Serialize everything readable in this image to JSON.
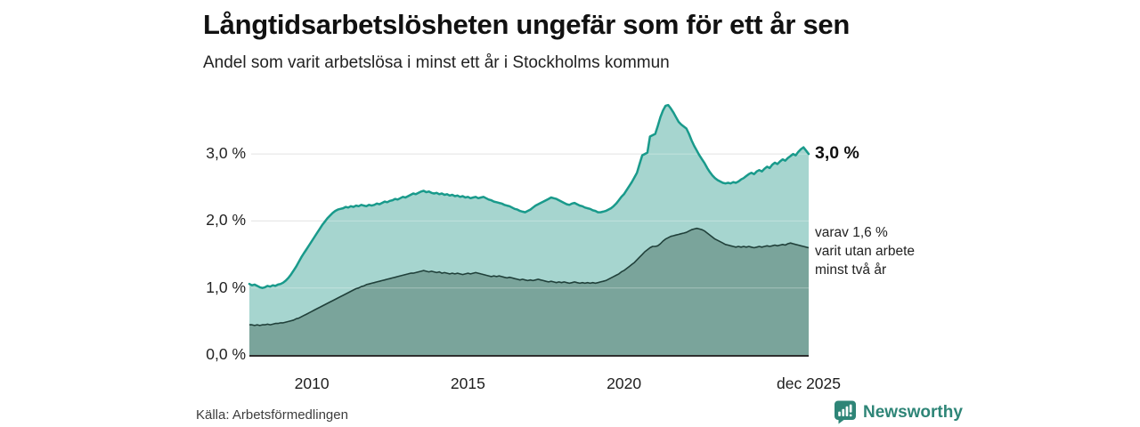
{
  "header": {
    "title": "Långtidsarbetslösheten ungefär som för ett år sen",
    "subtitle": "Andel som varit arbetslösa i minst ett år i Stockholms kommun"
  },
  "annotations": {
    "end_value_total": "3,0 %",
    "end_note_lines": [
      "varav 1,6 %",
      "varit utan arbete",
      "minst två år"
    ]
  },
  "source": {
    "label": "Källa: Arbetsförmedlingen"
  },
  "branding": {
    "name": "Newsworthy",
    "color": "#2e8577",
    "icon": "newsworthy-chart-bubble-icon"
  },
  "chart_data": {
    "type": "area",
    "x_unit": "month",
    "x_range": [
      "2008-01",
      "2025-12"
    ],
    "ylim": [
      0,
      3.9
    ],
    "grid": true,
    "grid_color": "#d9d9d9",
    "axis_color": "#2e2e2e",
    "legend_position": "right-annotations",
    "y_ticks": [
      {
        "value": 0,
        "label": "0,0 %"
      },
      {
        "value": 1,
        "label": "1,0 %"
      },
      {
        "value": 2,
        "label": "2,0 %"
      },
      {
        "value": 3,
        "label": "3,0 %"
      }
    ],
    "x_ticks": [
      {
        "index": 24,
        "label": "2010"
      },
      {
        "index": 84,
        "label": "2015"
      },
      {
        "index": 144,
        "label": "2020"
      },
      {
        "index": 215,
        "label": "dec 2025"
      }
    ],
    "series": [
      {
        "name": "Andel som varit arbetslösa i minst ett år",
        "end_value": 3.0,
        "line_color": "#199a8b",
        "fill_color": "#a6d5cf",
        "values": [
          1.06,
          1.04,
          1.05,
          1.03,
          1.01,
          1.0,
          1.01,
          1.03,
          1.02,
          1.04,
          1.03,
          1.05,
          1.06,
          1.08,
          1.11,
          1.15,
          1.2,
          1.26,
          1.32,
          1.39,
          1.46,
          1.52,
          1.58,
          1.64,
          1.7,
          1.76,
          1.82,
          1.88,
          1.94,
          1.99,
          2.04,
          2.08,
          2.12,
          2.15,
          2.17,
          2.18,
          2.19,
          2.21,
          2.2,
          2.22,
          2.21,
          2.23,
          2.22,
          2.24,
          2.23,
          2.22,
          2.24,
          2.23,
          2.24,
          2.26,
          2.25,
          2.27,
          2.29,
          2.28,
          2.3,
          2.31,
          2.33,
          2.32,
          2.34,
          2.36,
          2.35,
          2.37,
          2.39,
          2.41,
          2.4,
          2.42,
          2.44,
          2.45,
          2.43,
          2.44,
          2.42,
          2.41,
          2.42,
          2.4,
          2.41,
          2.39,
          2.4,
          2.38,
          2.39,
          2.37,
          2.38,
          2.36,
          2.37,
          2.35,
          2.36,
          2.34,
          2.35,
          2.36,
          2.34,
          2.35,
          2.36,
          2.34,
          2.32,
          2.31,
          2.29,
          2.28,
          2.27,
          2.26,
          2.24,
          2.23,
          2.22,
          2.2,
          2.18,
          2.17,
          2.15,
          2.14,
          2.13,
          2.15,
          2.17,
          2.2,
          2.23,
          2.25,
          2.27,
          2.29,
          2.31,
          2.33,
          2.35,
          2.34,
          2.33,
          2.31,
          2.29,
          2.27,
          2.25,
          2.24,
          2.26,
          2.27,
          2.25,
          2.23,
          2.22,
          2.2,
          2.19,
          2.18,
          2.16,
          2.15,
          2.13,
          2.13,
          2.14,
          2.15,
          2.17,
          2.19,
          2.22,
          2.26,
          2.31,
          2.36,
          2.4,
          2.46,
          2.52,
          2.58,
          2.65,
          2.72,
          2.85,
          2.98,
          3.0,
          3.02,
          3.26,
          3.28,
          3.3,
          3.42,
          3.55,
          3.65,
          3.72,
          3.73,
          3.68,
          3.62,
          3.55,
          3.48,
          3.44,
          3.41,
          3.38,
          3.3,
          3.2,
          3.12,
          3.05,
          2.98,
          2.92,
          2.86,
          2.79,
          2.73,
          2.68,
          2.64,
          2.61,
          2.59,
          2.57,
          2.56,
          2.57,
          2.56,
          2.58,
          2.57,
          2.59,
          2.62,
          2.64,
          2.67,
          2.7,
          2.72,
          2.7,
          2.74,
          2.76,
          2.74,
          2.78,
          2.81,
          2.79,
          2.84,
          2.87,
          2.85,
          2.89,
          2.92,
          2.9,
          2.94,
          2.97,
          3.0,
          2.98,
          3.03,
          3.07,
          3.1,
          3.05,
          3.0
        ]
      },
      {
        "name": "varav utan arbete i minst två år",
        "end_value": 1.6,
        "line_color": "#20403a",
        "fill_color": "#7aa49b",
        "values": [
          0.45,
          0.45,
          0.44,
          0.45,
          0.44,
          0.45,
          0.45,
          0.46,
          0.45,
          0.46,
          0.47,
          0.47,
          0.48,
          0.48,
          0.49,
          0.5,
          0.51,
          0.52,
          0.54,
          0.55,
          0.57,
          0.59,
          0.61,
          0.63,
          0.65,
          0.67,
          0.69,
          0.71,
          0.73,
          0.75,
          0.77,
          0.79,
          0.81,
          0.83,
          0.85,
          0.87,
          0.89,
          0.91,
          0.93,
          0.95,
          0.97,
          0.99,
          1.0,
          1.02,
          1.03,
          1.05,
          1.06,
          1.07,
          1.08,
          1.09,
          1.1,
          1.11,
          1.12,
          1.13,
          1.14,
          1.15,
          1.16,
          1.17,
          1.18,
          1.19,
          1.2,
          1.21,
          1.22,
          1.22,
          1.23,
          1.24,
          1.25,
          1.26,
          1.25,
          1.24,
          1.25,
          1.24,
          1.23,
          1.24,
          1.22,
          1.23,
          1.22,
          1.21,
          1.22,
          1.21,
          1.22,
          1.21,
          1.2,
          1.21,
          1.22,
          1.21,
          1.22,
          1.23,
          1.22,
          1.21,
          1.2,
          1.19,
          1.18,
          1.17,
          1.18,
          1.17,
          1.18,
          1.17,
          1.16,
          1.15,
          1.16,
          1.15,
          1.14,
          1.13,
          1.12,
          1.13,
          1.12,
          1.11,
          1.12,
          1.11,
          1.12,
          1.13,
          1.12,
          1.11,
          1.1,
          1.09,
          1.1,
          1.09,
          1.08,
          1.09,
          1.08,
          1.09,
          1.08,
          1.07,
          1.08,
          1.09,
          1.08,
          1.07,
          1.08,
          1.07,
          1.08,
          1.07,
          1.08,
          1.07,
          1.08,
          1.09,
          1.1,
          1.11,
          1.13,
          1.15,
          1.17,
          1.19,
          1.21,
          1.24,
          1.26,
          1.29,
          1.32,
          1.35,
          1.38,
          1.42,
          1.46,
          1.5,
          1.54,
          1.57,
          1.6,
          1.62,
          1.62,
          1.63,
          1.66,
          1.7,
          1.73,
          1.75,
          1.77,
          1.78,
          1.79,
          1.8,
          1.81,
          1.82,
          1.83,
          1.85,
          1.87,
          1.88,
          1.89,
          1.88,
          1.87,
          1.85,
          1.82,
          1.79,
          1.76,
          1.73,
          1.71,
          1.69,
          1.67,
          1.65,
          1.64,
          1.63,
          1.62,
          1.61,
          1.62,
          1.61,
          1.62,
          1.61,
          1.62,
          1.61,
          1.6,
          1.61,
          1.62,
          1.61,
          1.62,
          1.63,
          1.62,
          1.63,
          1.64,
          1.63,
          1.64,
          1.65,
          1.64,
          1.66,
          1.67,
          1.66,
          1.65,
          1.64,
          1.63,
          1.62,
          1.61,
          1.6
        ]
      }
    ]
  }
}
